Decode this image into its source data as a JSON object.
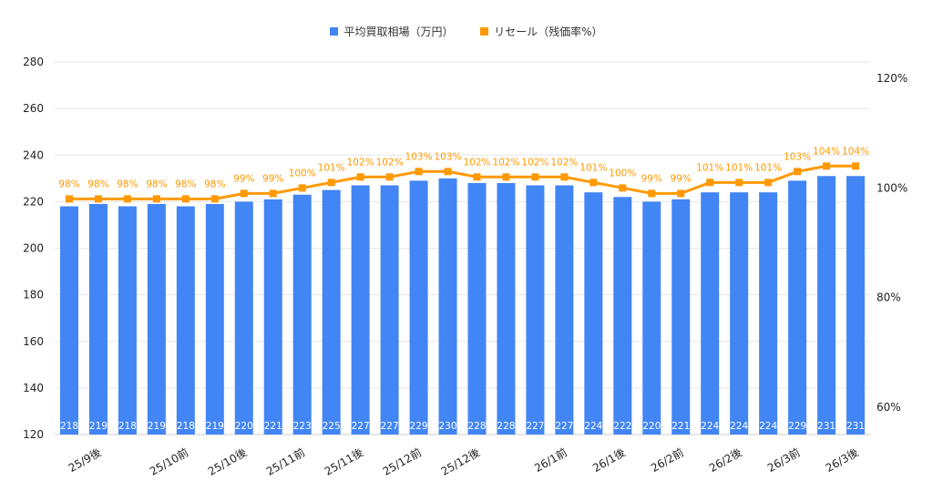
{
  "chart_data": {
    "type": "bar+line",
    "legend_position": "top",
    "grid": true,
    "categories": [
      "",
      "25/9後",
      "",
      "",
      "25/10前",
      "",
      "25/10後",
      "",
      "25/11前",
      "",
      "25/11後",
      "",
      "25/12前",
      "",
      "25/12後",
      "",
      "",
      "26/1前",
      "",
      "26/1後",
      "",
      "26/2前",
      "",
      "26/2後",
      "",
      "26/3前",
      "",
      "26/3後"
    ],
    "series": [
      {
        "name": "平均買取相場（万円）",
        "type": "bar",
        "axis": "left",
        "color": "#4285f4",
        "values": [
          218,
          219,
          218,
          219,
          218,
          219,
          220,
          221,
          223,
          225,
          227,
          227,
          229,
          230,
          228,
          228,
          227,
          227,
          224,
          222,
          220,
          221,
          224,
          224,
          224,
          229,
          231,
          231
        ]
      },
      {
        "name": "リセール（残価率%）",
        "type": "line",
        "axis": "right",
        "color": "#ff9900",
        "values": [
          98,
          98,
          98,
          98,
          98,
          98,
          99,
          99,
          100,
          101,
          102,
          102,
          103,
          103,
          102,
          102,
          102,
          102,
          101,
          100,
          99,
          99,
          101,
          101,
          101,
          103,
          104,
          104
        ]
      }
    ],
    "left_axis": {
      "ylim": [
        120,
        280
      ],
      "ticks": [
        "120",
        "140",
        "160",
        "180",
        "200",
        "220",
        "240",
        "260",
        "280"
      ]
    },
    "right_axis": {
      "ylim": [
        55,
        123
      ],
      "ticks": [
        "60%",
        "80%",
        "100%",
        "120%"
      ]
    }
  }
}
